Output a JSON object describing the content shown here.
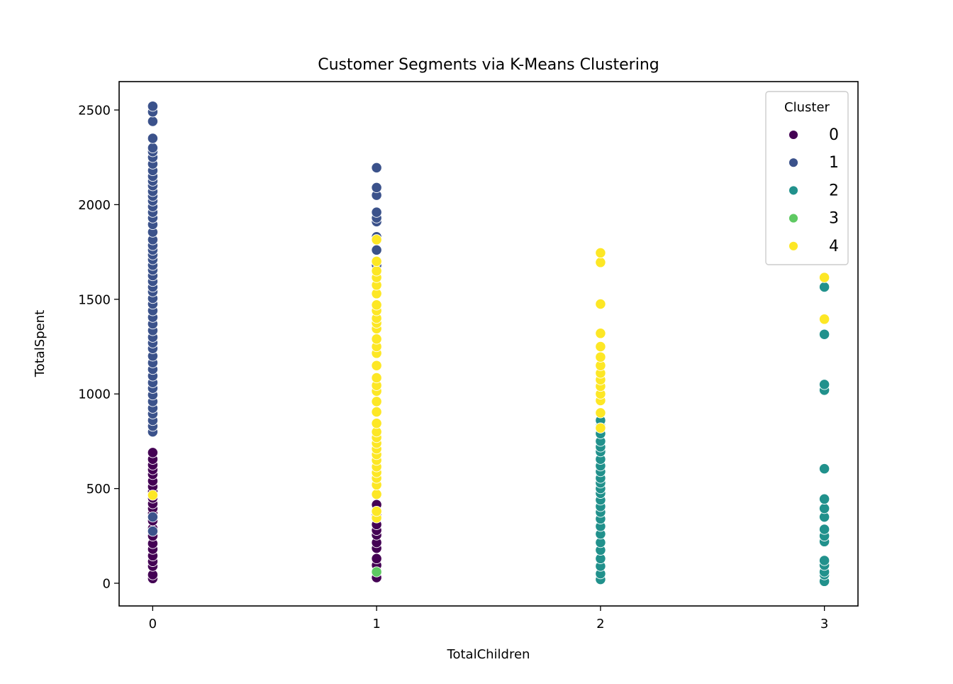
{
  "chart_data": {
    "type": "scatter",
    "title": "Customer Segments via K-Means Clustering",
    "xlabel": "TotalChildren",
    "ylabel": "TotalSpent",
    "xlim": [
      -0.15,
      3.15
    ],
    "ylim": [
      -120,
      2650
    ],
    "x_ticks": [
      0,
      1,
      2,
      3
    ],
    "y_ticks": [
      0,
      500,
      1000,
      1500,
      2000,
      2500
    ],
    "grid": false,
    "legend": {
      "title": "Cluster",
      "placement": "top-right",
      "entries": [
        "0",
        "1",
        "2",
        "3",
        "4"
      ]
    },
    "colors": {
      "0": "#440154",
      "1": "#3b528b",
      "2": "#21918c",
      "3": "#5ec962",
      "4": "#fde725"
    },
    "series": [
      {
        "name": "0",
        "points": [
          [
            0,
            25
          ],
          [
            0,
            45
          ],
          [
            0,
            90
          ],
          [
            0,
            115
          ],
          [
            0,
            145
          ],
          [
            0,
            180
          ],
          [
            0,
            210
          ],
          [
            0,
            250
          ],
          [
            0,
            290
          ],
          [
            0,
            330
          ],
          [
            0,
            370
          ],
          [
            0,
            395
          ],
          [
            0,
            420
          ],
          [
            0,
            450
          ],
          [
            0,
            485
          ],
          [
            0,
            510
          ],
          [
            0,
            540
          ],
          [
            0,
            575
          ],
          [
            0,
            600
          ],
          [
            0,
            625
          ],
          [
            0,
            655
          ],
          [
            0,
            690
          ],
          [
            0,
            840
          ],
          [
            1,
            30
          ],
          [
            1,
            65
          ],
          [
            1,
            95
          ],
          [
            1,
            130
          ],
          [
            1,
            185
          ],
          [
            1,
            215
          ],
          [
            1,
            255
          ],
          [
            1,
            280
          ],
          [
            1,
            310
          ],
          [
            1,
            360
          ],
          [
            1,
            415
          ],
          [
            1,
            525
          ]
        ]
      },
      {
        "name": "1",
        "points": [
          [
            0,
            275
          ],
          [
            0,
            350
          ],
          [
            0,
            800
          ],
          [
            0,
            830
          ],
          [
            0,
            860
          ],
          [
            0,
            895
          ],
          [
            0,
            925
          ],
          [
            0,
            960
          ],
          [
            0,
            995
          ],
          [
            0,
            1030
          ],
          [
            0,
            1060
          ],
          [
            0,
            1095
          ],
          [
            0,
            1130
          ],
          [
            0,
            1165
          ],
          [
            0,
            1200
          ],
          [
            0,
            1240
          ],
          [
            0,
            1270
          ],
          [
            0,
            1300
          ],
          [
            0,
            1335
          ],
          [
            0,
            1370
          ],
          [
            0,
            1405
          ],
          [
            0,
            1440
          ],
          [
            0,
            1475
          ],
          [
            0,
            1505
          ],
          [
            0,
            1540
          ],
          [
            0,
            1565
          ],
          [
            0,
            1595
          ],
          [
            0,
            1625
          ],
          [
            0,
            1655
          ],
          [
            0,
            1680
          ],
          [
            0,
            1710
          ],
          [
            0,
            1735
          ],
          [
            0,
            1760
          ],
          [
            0,
            1785
          ],
          [
            0,
            1815
          ],
          [
            0,
            1855
          ],
          [
            0,
            1895
          ],
          [
            0,
            1930
          ],
          [
            0,
            1960
          ],
          [
            0,
            1990
          ],
          [
            0,
            2020
          ],
          [
            0,
            2045
          ],
          [
            0,
            2070
          ],
          [
            0,
            2100
          ],
          [
            0,
            2125
          ],
          [
            0,
            2150
          ],
          [
            0,
            2180
          ],
          [
            0,
            2215
          ],
          [
            0,
            2250
          ],
          [
            0,
            2280
          ],
          [
            0,
            2300
          ],
          [
            0,
            2350
          ],
          [
            0,
            2440
          ],
          [
            0,
            2490
          ],
          [
            0,
            2520
          ],
          [
            1,
            1680
          ],
          [
            1,
            1760
          ],
          [
            1,
            1830
          ],
          [
            1,
            1910
          ],
          [
            1,
            1930
          ],
          [
            1,
            1960
          ],
          [
            1,
            2050
          ],
          [
            1,
            2090
          ],
          [
            1,
            2195
          ]
        ]
      },
      {
        "name": "2",
        "points": [
          [
            2,
            20
          ],
          [
            2,
            50
          ],
          [
            2,
            90
          ],
          [
            2,
            130
          ],
          [
            2,
            175
          ],
          [
            2,
            215
          ],
          [
            2,
            260
          ],
          [
            2,
            300
          ],
          [
            2,
            340
          ],
          [
            2,
            375
          ],
          [
            2,
            405
          ],
          [
            2,
            440
          ],
          [
            2,
            475
          ],
          [
            2,
            500
          ],
          [
            2,
            530
          ],
          [
            2,
            555
          ],
          [
            2,
            590
          ],
          [
            2,
            620
          ],
          [
            2,
            655
          ],
          [
            2,
            695
          ],
          [
            2,
            720
          ],
          [
            2,
            750
          ],
          [
            2,
            790
          ],
          [
            2,
            830
          ],
          [
            2,
            860
          ],
          [
            3,
            10
          ],
          [
            3,
            45
          ],
          [
            3,
            60
          ],
          [
            3,
            95
          ],
          [
            3,
            120
          ],
          [
            3,
            220
          ],
          [
            3,
            250
          ],
          [
            3,
            285
          ],
          [
            3,
            350
          ],
          [
            3,
            395
          ],
          [
            3,
            445
          ],
          [
            3,
            605
          ],
          [
            3,
            1020
          ],
          [
            3,
            1050
          ],
          [
            3,
            1315
          ],
          [
            3,
            1565
          ]
        ]
      },
      {
        "name": "3",
        "points": [
          [
            1,
            60
          ]
        ]
      },
      {
        "name": "4",
        "points": [
          [
            0,
            465
          ],
          [
            1,
            345
          ],
          [
            1,
            380
          ],
          [
            1,
            470
          ],
          [
            1,
            520
          ],
          [
            1,
            555
          ],
          [
            1,
            585
          ],
          [
            1,
            615
          ],
          [
            1,
            650
          ],
          [
            1,
            680
          ],
          [
            1,
            710
          ],
          [
            1,
            740
          ],
          [
            1,
            770
          ],
          [
            1,
            800
          ],
          [
            1,
            845
          ],
          [
            1,
            905
          ],
          [
            1,
            960
          ],
          [
            1,
            1015
          ],
          [
            1,
            1045
          ],
          [
            1,
            1085
          ],
          [
            1,
            1150
          ],
          [
            1,
            1215
          ],
          [
            1,
            1250
          ],
          [
            1,
            1290
          ],
          [
            1,
            1345
          ],
          [
            1,
            1375
          ],
          [
            1,
            1400
          ],
          [
            1,
            1440
          ],
          [
            1,
            1470
          ],
          [
            1,
            1530
          ],
          [
            1,
            1575
          ],
          [
            1,
            1615
          ],
          [
            1,
            1650
          ],
          [
            1,
            1700
          ],
          [
            1,
            1815
          ],
          [
            2,
            820
          ],
          [
            2,
            900
          ],
          [
            2,
            965
          ],
          [
            2,
            1000
          ],
          [
            2,
            1040
          ],
          [
            2,
            1075
          ],
          [
            2,
            1110
          ],
          [
            2,
            1150
          ],
          [
            2,
            1195
          ],
          [
            2,
            1250
          ],
          [
            2,
            1320
          ],
          [
            2,
            1475
          ],
          [
            2,
            1695
          ],
          [
            2,
            1745
          ],
          [
            3,
            1395
          ],
          [
            3,
            1615
          ]
        ]
      }
    ]
  }
}
